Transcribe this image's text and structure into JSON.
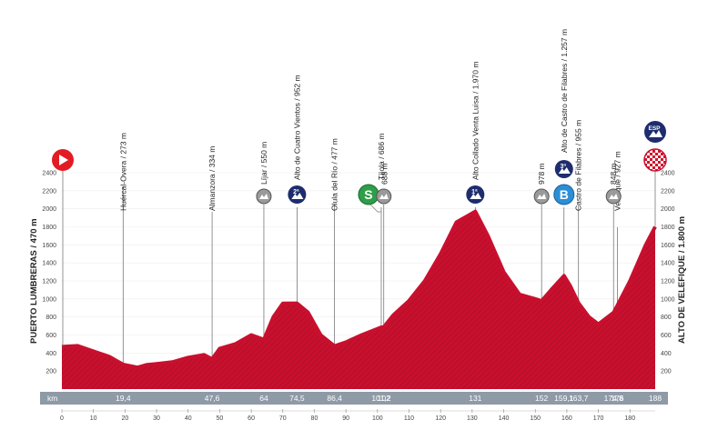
{
  "start_label": "PUERTO LUMBRERAS / 470 m",
  "finish_label": "ALTO DE VELEFIQUE / 1.800 m",
  "km_bar_title": "km",
  "colors": {
    "profile": "#c8102e",
    "profile_dark": "#8f0b1f",
    "km_bar": "#8e9aa6",
    "sprint": "#2e9e48",
    "bonus": "#2b8fd6",
    "climb": "#1d2d6e",
    "gray_marker": "#9a9a9a",
    "start": "#e21c23"
  },
  "chart_data": {
    "type": "area",
    "xlabel": "km",
    "ylabel": "",
    "xlim": [
      0,
      188
    ],
    "ylim": [
      0,
      2600
    ],
    "x_ticks": [
      0,
      10,
      20,
      30,
      40,
      50,
      60,
      70,
      80,
      90,
      100,
      110,
      120,
      130,
      140,
      150,
      160,
      170,
      180
    ],
    "y_ticks": [
      200,
      400,
      600,
      800,
      1000,
      1200,
      1400,
      1600,
      1800,
      2000,
      2200,
      2400
    ],
    "series": [
      {
        "x": [
          0,
          5,
          10,
          15,
          19.4,
          24,
          27,
          30,
          35,
          40,
          45,
          47.6,
          50,
          55,
          60,
          64,
          67,
          70,
          74.5,
          78,
          82,
          86.4,
          90,
          95,
          101.2,
          102,
          105,
          110,
          115,
          120,
          125,
          131,
          135,
          140,
          145,
          150,
          152,
          155,
          159.1,
          161,
          163.7,
          167,
          170,
          174.8,
          176,
          180,
          185,
          188
        ],
        "y": [
          470,
          480,
          420,
          360,
          273,
          240,
          270,
          280,
          300,
          350,
          380,
          334,
          450,
          500,
          600,
          550,
          800,
          950,
          952,
          850,
          600,
          477,
          520,
          600,
          686,
          688,
          820,
          980,
          1200,
          1500,
          1850,
          1970,
          1700,
          1300,
          1050,
          1000,
          978,
          1100,
          1257,
          1150,
          955,
          800,
          720,
          848,
          927,
          1200,
          1600,
          1800
        ]
      }
    ],
    "waypoints": [
      {
        "km": 19.4,
        "km_label": "19,4",
        "name": "Huércal-Overa / 273 m",
        "alt": 273,
        "marker": "none"
      },
      {
        "km": 47.6,
        "km_label": "47,6",
        "name": "Almanzora / 334 m",
        "alt": 334,
        "marker": "none"
      },
      {
        "km": 64,
        "km_label": "64",
        "name": "Líjar / 550 m",
        "alt": 550,
        "marker": "gray"
      },
      {
        "km": 74.5,
        "km_label": "74,5",
        "name": "Alto de Cuatro Vientos / 952 m",
        "alt": 952,
        "marker": "climb",
        "badge": "2ª"
      },
      {
        "km": 86.4,
        "km_label": "86,4",
        "name": "Olula del Río / 477 m",
        "alt": 477,
        "marker": "none"
      },
      {
        "km": 101.2,
        "km_label": "101,2",
        "name": "Tíjola / 686 m",
        "alt": 686,
        "marker": "sprint",
        "badge": "S"
      },
      {
        "km": 102,
        "km_label": "102",
        "name": "688 m",
        "alt": 688,
        "marker": "gray"
      },
      {
        "km": 131,
        "km_label": "131",
        "name": "Alto Collado Venta Luisa / 1.970 m",
        "alt": 1970,
        "marker": "climb",
        "badge": "1ª"
      },
      {
        "km": 152,
        "km_label": "152",
        "name": "978 m",
        "alt": 978,
        "marker": "gray"
      },
      {
        "km": 159.1,
        "km_label": "159,1",
        "name": "Alto de Castro de Filabres / 1.257 m",
        "alt": 1257,
        "marker": "bonus+climb",
        "badge": "B",
        "badge2": "3ª"
      },
      {
        "km": 163.7,
        "km_label": "163,7",
        "name": "Castro de Filabres / 955 m",
        "alt": 955,
        "marker": "none"
      },
      {
        "km": 174.8,
        "km_label": "174,8",
        "name": "848 m",
        "alt": 848,
        "marker": "gray"
      },
      {
        "km": 176,
        "km_label": "176",
        "name": "Velefique / 927 m",
        "alt": 927,
        "marker": "none"
      },
      {
        "km": 188,
        "km_label": "188",
        "name": "",
        "alt": 1800,
        "marker": "finish",
        "badge": "ESP"
      }
    ]
  }
}
